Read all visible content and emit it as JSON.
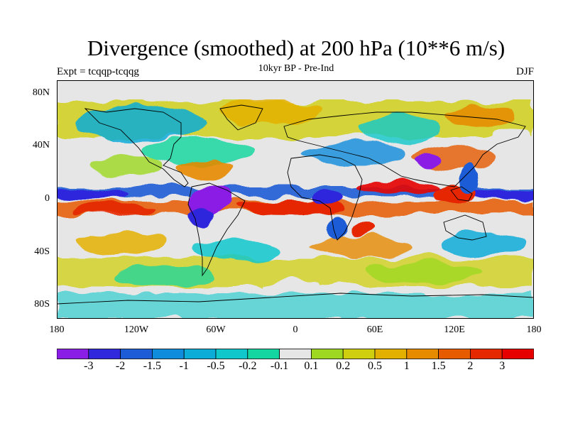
{
  "title": "Divergence (smoothed) at 200 hPa (10**6 m/s)",
  "subtitle": "10kyr BP - Pre-Ind",
  "experiment": "Expt = tcqqp-tcqqg",
  "season": "DJF",
  "axes": {
    "lat_labels": [
      "80N",
      "40N",
      "0",
      "40S",
      "80S"
    ],
    "lat_values": [
      80,
      40,
      0,
      -40,
      -80
    ],
    "lon_labels": [
      "180",
      "120W",
      "60W",
      "0",
      "60E",
      "120E",
      "180"
    ],
    "lon_values": [
      -180,
      -120,
      -60,
      0,
      60,
      120,
      180
    ]
  },
  "colorbar": {
    "labels": [
      "-3",
      "-2",
      "-1.5",
      "-1",
      "-0.5",
      "-0.2",
      "-0.1",
      "0.1",
      "0.2",
      "0.5",
      "1",
      "1.5",
      "2",
      "3"
    ],
    "colors": [
      "#8a1ee6",
      "#2f28dc",
      "#1c5cd6",
      "#0f8cdc",
      "#0cacd8",
      "#10c8cc",
      "#14d6a0",
      "#e6e6e6",
      "#9ed820",
      "#cfcf10",
      "#e3b000",
      "#e68a00",
      "#e65a00",
      "#e62800",
      "#e60000"
    ]
  },
  "colors": {
    "frame": "#000000",
    "coast": "#000000",
    "background": "#ffffff"
  }
}
